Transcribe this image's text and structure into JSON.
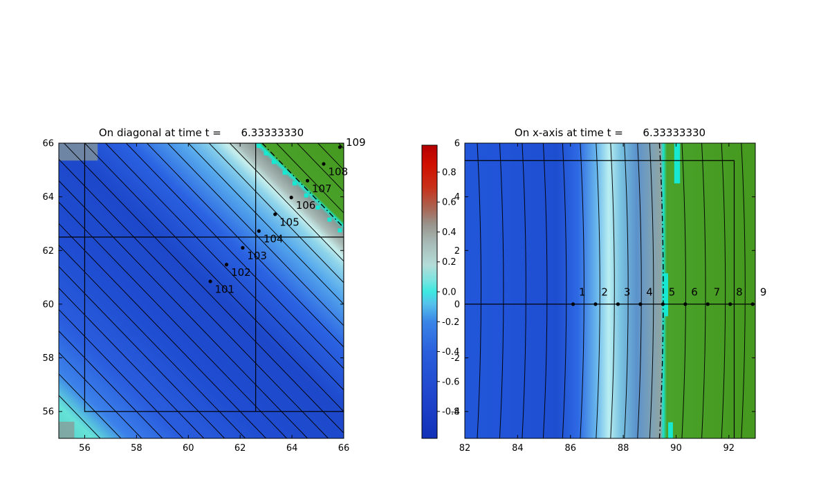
{
  "style": {
    "background": "#ffffff",
    "frame_color": "#000000",
    "contour_color": "#000000",
    "marker_color": "#000000",
    "green_region": "#4aa22b",
    "interface_cyan": "#16e8d2",
    "artifact_gray": "#8a9a96"
  },
  "chart_data": [
    {
      "id": "diagonal-plot",
      "type": "heatmap+contour+scatter",
      "title": "On diagonal at time t =      6.33333330",
      "xlim": [
        55,
        66
      ],
      "ylim": [
        55,
        66
      ],
      "x_ticks": [
        56,
        58,
        60,
        62,
        64,
        66
      ],
      "y_ticks": [
        56,
        58,
        60,
        62,
        64,
        66
      ],
      "grid": false,
      "colormap_along_diagonal": [
        {
          "s": 110.0,
          "color": "#58d0c8"
        },
        {
          "s": 111.3,
          "color": "#66e2d8"
        },
        {
          "s": 112.6,
          "color": "#3c82ea"
        },
        {
          "s": 114.5,
          "color": "#2a5ede"
        },
        {
          "s": 118.0,
          "color": "#1f4cd0"
        },
        {
          "s": 121.5,
          "color": "#1d48ca"
        },
        {
          "s": 124.0,
          "color": "#2a62e2"
        },
        {
          "s": 126.0,
          "color": "#55a8ec"
        },
        {
          "s": 127.1,
          "color": "#8ed4ea"
        },
        {
          "s": 127.6,
          "color": "#c6eeec"
        },
        {
          "s": 128.0,
          "color": "#aabcb8"
        },
        {
          "s": 128.6,
          "color": "#8a9a96"
        },
        {
          "s": 128.8,
          "color": "#19e8d2"
        },
        {
          "s": 128.95,
          "color": "#4aa22b"
        },
        {
          "s": 132.0,
          "color": "#45991e"
        }
      ],
      "contour_levels_sum_xy": [
        111.6,
        112.4,
        113.2,
        114.0,
        114.8,
        115.6,
        116.4,
        117.2,
        118.0,
        118.8,
        119.6,
        120.4,
        121.2,
        122.0,
        122.8,
        123.6,
        124.4,
        125.2,
        126.0,
        126.8,
        127.6,
        129.4,
        130.2,
        131.0,
        131.8
      ],
      "interface_sum_xy": 128.85,
      "domain_box": [
        56,
        56,
        66,
        66
      ],
      "hline_y": 62.5,
      "vline_x": 62.6,
      "vline_y_range": [
        56,
        66
      ],
      "points": [
        {
          "label": "101",
          "x": 60.85,
          "y": 60.85,
          "label_x": 61.02,
          "label_y": 60.42
        },
        {
          "label": "102",
          "x": 61.475,
          "y": 61.475,
          "label_x": 61.65,
          "label_y": 61.05
        },
        {
          "label": "103",
          "x": 62.1,
          "y": 62.1,
          "label_x": 62.27,
          "label_y": 61.67
        },
        {
          "label": "104",
          "x": 62.725,
          "y": 62.725,
          "label_x": 62.9,
          "label_y": 62.3
        },
        {
          "label": "105",
          "x": 63.35,
          "y": 63.35,
          "label_x": 63.52,
          "label_y": 62.92
        },
        {
          "label": "106",
          "x": 63.975,
          "y": 63.975,
          "label_x": 64.15,
          "label_y": 63.55
        },
        {
          "label": "107",
          "x": 64.6,
          "y": 64.6,
          "label_x": 64.77,
          "label_y": 64.17
        },
        {
          "label": "108",
          "x": 65.225,
          "y": 65.225,
          "label_x": 65.4,
          "label_y": 64.8
        },
        {
          "label": "109",
          "x": 65.85,
          "y": 65.85,
          "label_x": 66.08,
          "label_y": 65.9
        }
      ],
      "artifacts": [
        [
          62.72,
          65.9
        ],
        [
          63.0,
          65.62
        ],
        [
          63.3,
          65.3
        ],
        [
          63.72,
          64.9
        ],
        [
          64.1,
          64.5
        ],
        [
          64.55,
          64.05
        ],
        [
          65.0,
          63.6
        ],
        [
          65.45,
          63.15
        ],
        [
          65.85,
          62.75
        ]
      ],
      "corner_patches": [
        {
          "x": 55,
          "y": 65.35,
          "w": 1.5,
          "h": 0.65
        },
        {
          "x": 55,
          "y": 55,
          "w": 0.6,
          "h": 0.62
        }
      ]
    },
    {
      "id": "x-axis-plot",
      "type": "heatmap+contour+scatter",
      "title": "On x-axis at time t =      6.33333330",
      "xlim": [
        82,
        93
      ],
      "ylim": [
        -5,
        6
      ],
      "x_ticks": [
        82,
        84,
        86,
        88,
        90,
        92
      ],
      "y_ticks": [
        -4,
        -2,
        0,
        2,
        4,
        6
      ],
      "grid": false,
      "colormap_along_x": [
        {
          "x": 82.0,
          "color": "#2257da"
        },
        {
          "x": 84.0,
          "color": "#2052d6"
        },
        {
          "x": 85.5,
          "color": "#1e4ed0"
        },
        {
          "x": 86.3,
          "color": "#2e6ae4"
        },
        {
          "x": 87.0,
          "color": "#6ab8ec"
        },
        {
          "x": 87.45,
          "color": "#b9eef2"
        },
        {
          "x": 87.9,
          "color": "#79c2e0"
        },
        {
          "x": 88.5,
          "color": "#5b92cc"
        },
        {
          "x": 89.1,
          "color": "#7ea2b4"
        },
        {
          "x": 89.42,
          "color": "#8fa4a4"
        },
        {
          "x": 89.52,
          "color": "#18e4cc"
        },
        {
          "x": 89.65,
          "color": "#4aa22b"
        },
        {
          "x": 93.0,
          "color": "#45991e"
        }
      ],
      "contour_x": [
        82.55,
        83.4,
        84.25,
        85.05,
        85.78,
        86.45,
        87.05,
        87.6,
        88.12,
        88.62,
        89.08,
        90.3,
        91.05,
        91.8,
        92.55
      ],
      "interface_x": 89.45,
      "hline_y": 0,
      "box_polyline": [
        [
          82,
          5.35
        ],
        [
          92.2,
          5.35
        ],
        [
          92.2,
          -5
        ]
      ],
      "points": [
        {
          "label": "1",
          "x": 86.1,
          "y": 0,
          "label_x": 86.32,
          "label_y": 0.32
        },
        {
          "label": "2",
          "x": 86.95,
          "y": 0,
          "label_x": 87.17,
          "label_y": 0.32
        },
        {
          "label": "3",
          "x": 87.8,
          "y": 0,
          "label_x": 88.02,
          "label_y": 0.32
        },
        {
          "label": "4",
          "x": 88.65,
          "y": 0,
          "label_x": 88.87,
          "label_y": 0.32
        },
        {
          "label": "5",
          "x": 89.5,
          "y": 0,
          "label_x": 89.72,
          "label_y": 0.32
        },
        {
          "label": "6",
          "x": 90.35,
          "y": 0,
          "label_x": 90.57,
          "label_y": 0.32
        },
        {
          "label": "7",
          "x": 91.2,
          "y": 0,
          "label_x": 91.42,
          "label_y": 0.32
        },
        {
          "label": "8",
          "x": 92.05,
          "y": 0,
          "label_x": 92.27,
          "label_y": 0.32
        },
        {
          "label": "9",
          "x": 92.9,
          "y": 0,
          "label_x": 93.18,
          "label_y": 0.32
        }
      ],
      "artifacts_rects": [
        [
          89.93,
          4.5,
          0.22,
          1.5
        ],
        [
          89.48,
          -0.45,
          0.22,
          1.6
        ],
        [
          89.7,
          -5.0,
          0.18,
          0.6
        ]
      ]
    }
  ],
  "colorbar": {
    "ticks": [
      "0.8",
      "0.6",
      "0.4",
      "0.2",
      "0.0",
      "-0.2",
      "-0.4",
      "-0.6",
      "-0.8"
    ],
    "vmin": -0.98,
    "vmax": 0.98,
    "stops": [
      {
        "v": 0.98,
        "color": "#b40000"
      },
      {
        "v": 0.85,
        "color": "#d01000"
      },
      {
        "v": 0.7,
        "color": "#c83018"
      },
      {
        "v": 0.55,
        "color": "#a86858"
      },
      {
        "v": 0.45,
        "color": "#98948c"
      },
      {
        "v": 0.32,
        "color": "#a8bcb8"
      },
      {
        "v": 0.18,
        "color": "#b4dcd8"
      },
      {
        "v": 0.08,
        "color": "#7ce4e0"
      },
      {
        "v": 0.0,
        "color": "#3ce8e0"
      },
      {
        "v": -0.08,
        "color": "#55c2ec"
      },
      {
        "v": -0.2,
        "color": "#3a85e8"
      },
      {
        "v": -0.4,
        "color": "#2a5fdc"
      },
      {
        "v": -0.7,
        "color": "#1f45cc"
      },
      {
        "v": -0.98,
        "color": "#1230b8"
      }
    ]
  }
}
